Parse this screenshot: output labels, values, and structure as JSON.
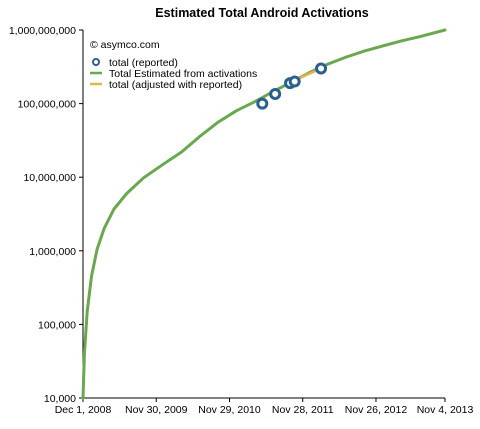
{
  "chart_data": {
    "type": "line",
    "title": "Estimated Total Android Activations",
    "credit": "© asymco.com",
    "y_scale": "log",
    "ylim": [
      10000,
      1000000000
    ],
    "xlim": [
      "2008-12-01",
      "2013-11-04"
    ],
    "grid": false,
    "legend_position": "top-left",
    "y_ticks": [
      {
        "value": 10000,
        "label": "10,000"
      },
      {
        "value": 100000,
        "label": "100,000"
      },
      {
        "value": 1000000,
        "label": "1,000,000"
      },
      {
        "value": 10000000,
        "label": "10,000,000"
      },
      {
        "value": 100000000,
        "label": "100,000,000"
      },
      {
        "value": 1000000000,
        "label": "1,000,000,000"
      }
    ],
    "x_ticks": [
      {
        "value": "2008-12-01",
        "label": "Dec 1, 2008"
      },
      {
        "value": "2009-11-30",
        "label": "Nov 30, 2009"
      },
      {
        "value": "2010-11-29",
        "label": "Nov 29, 2010"
      },
      {
        "value": "2011-11-28",
        "label": "Nov 28, 2011"
      },
      {
        "value": "2012-11-26",
        "label": "Nov 26, 2012"
      },
      {
        "value": "2013-11-04",
        "label": "Nov 4, 2013"
      }
    ],
    "series": [
      {
        "name": "total (reported)",
        "kind": "marker",
        "color": "#2b5f8f",
        "x": [
          "2011-05-11",
          "2011-07-14",
          "2011-09-26",
          "2011-10-19",
          "2012-02-27"
        ],
        "y": [
          100000000,
          135000000,
          190000000,
          200000000,
          300000000
        ]
      },
      {
        "name": "Total Estimated from activations",
        "kind": "line",
        "color": "#6aa84f",
        "x": [
          "2008-12-01",
          "2008-12-08",
          "2008-12-22",
          "2009-01-12",
          "2009-02-09",
          "2009-03-16",
          "2009-05-04",
          "2009-07-06",
          "2009-09-28",
          "2010-01-04",
          "2010-04-05",
          "2010-07-05",
          "2010-10-04",
          "2011-01-03",
          "2011-04-04",
          "2011-07-04",
          "2011-10-03",
          "2012-01-02",
          "2012-04-02",
          "2012-07-02",
          "2012-10-01",
          "2013-01-07",
          "2013-04-01",
          "2013-07-01",
          "2013-11-04"
        ],
        "y": [
          10000,
          40000,
          150000,
          450000,
          1050000,
          2000000,
          3700000,
          6000000,
          9800000,
          15000000,
          22000000,
          36000000,
          56000000,
          80000000,
          106000000,
          146000000,
          196000000,
          265000000,
          345000000,
          430000000,
          520000000,
          615000000,
          710000000,
          810000000,
          1000000000
        ]
      },
      {
        "name": "total (adjusted with reported)",
        "kind": "line",
        "color": "#e8b04a",
        "x": [
          "2011-09-26",
          "2011-12-01",
          "2012-02-27"
        ],
        "y": [
          185000000,
          235000000,
          300000000
        ]
      }
    ]
  }
}
